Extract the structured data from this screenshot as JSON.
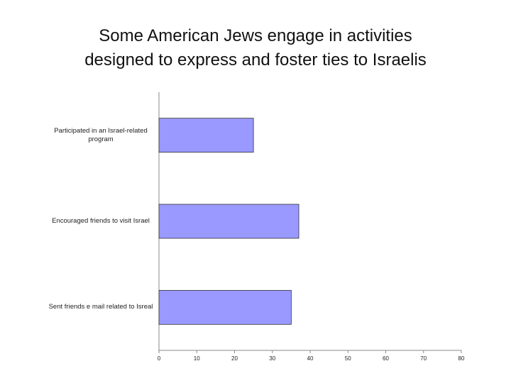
{
  "chart_data": {
    "type": "hbar",
    "title": [
      "Some American Jews engage in activities",
      "designed to express and foster ties to Israelis"
    ],
    "categories": [
      "Participated in an Israel-related program",
      "Encouraged friends to visit Israel",
      "Sent friends e mail related to Isreal"
    ],
    "values": [
      25,
      37,
      35
    ],
    "color": "#9999ff",
    "xlim": [
      0,
      80
    ],
    "xticks": [
      0,
      10,
      20,
      30,
      40,
      50,
      60,
      70,
      80
    ]
  }
}
